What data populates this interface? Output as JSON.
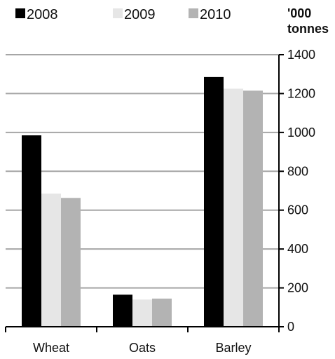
{
  "chart_data": {
    "type": "bar",
    "categories": [
      "Wheat",
      "Oats",
      "Barley"
    ],
    "series": [
      {
        "name": "2008",
        "values": [
          985,
          165,
          1285
        ],
        "color": "#000000"
      },
      {
        "name": "2009",
        "values": [
          685,
          140,
          1225
        ],
        "color": "#e6e6e6"
      },
      {
        "name": "2010",
        "values": [
          663,
          145,
          1215
        ],
        "color": "#b3b3b3"
      }
    ],
    "ylabel_lines": [
      "'000",
      "tonnes"
    ],
    "yticks": [
      0,
      200,
      400,
      600,
      800,
      1000,
      1200,
      1400
    ],
    "ylim": [
      0,
      1400
    ],
    "grid": true,
    "legend_position": "top",
    "y_axis_side": "right"
  }
}
